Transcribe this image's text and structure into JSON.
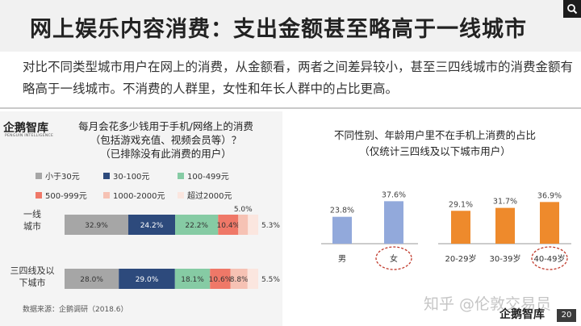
{
  "header": {
    "title": "网上娱乐内容消费：支出金额甚至略高于一线城市",
    "search_icon": "search-icon"
  },
  "description": "对比不同类型城市用户在网上的消费，从金额看，两者之间差异较小，甚至三四线城市的消费金额有略高于一线城市。不消费的人群里，女性和年长人群中的占比更高。",
  "logo": {
    "name": "企鹅智库",
    "subtitle": "PENGUIN INTELLIGENCE"
  },
  "left_chart": {
    "question_line1": "每月会花多少钱用于手机/网络上的消费",
    "question_line2": "（包括游戏充值、视频会员等）？",
    "question_line3": "（已排除没有此消费的用户）"
  },
  "right_chart": {
    "question_line1": "不同性别、年龄用户里不在手机上消费的占比",
    "question_line2": "（仅统计三四线及以下城市用户）"
  },
  "source": "数据来源：企鹅调研（2018.6）",
  "watermark": "知乎 @伦敦交易员",
  "page_number": "20",
  "colors": {
    "c1": "#a6a6a6",
    "c2": "#2d4a7c",
    "c3": "#86cba4",
    "c4": "#ef7868",
    "c5": "#f6c2b4",
    "c6": "#fbe6df",
    "gender_bar": "#92a9db",
    "age_bar": "#ee8a2c",
    "highlight_circle": "#c0392b"
  },
  "chart_data": [
    {
      "type": "bar",
      "orientation": "horizontal",
      "stacked": true,
      "percent": true,
      "categories": [
        "一线城市",
        "三四线及以下城市"
      ],
      "series": [
        {
          "name": "小于30元",
          "values": [
            32.9,
            28.0
          ]
        },
        {
          "name": "30-100元",
          "values": [
            24.2,
            29.0
          ]
        },
        {
          "name": "100-499元",
          "values": [
            22.2,
            18.1
          ]
        },
        {
          "name": "500-999元",
          "values": [
            10.4,
            10.6
          ]
        },
        {
          "name": "1000-2000元",
          "values": [
            5.0,
            8.8
          ]
        },
        {
          "name": "超过2000元",
          "values": [
            5.3,
            5.5
          ]
        }
      ],
      "title": "每月会花多少钱用于手机/网络上的消费（包括游戏充值、视频会员等）？（已排除没有此消费的用户）",
      "legend_position": "top",
      "grid": false
    },
    {
      "type": "bar",
      "categories": [
        "男",
        "女"
      ],
      "values": [
        23.8,
        37.6
      ],
      "title": "不同性别、年龄用户里不在手机上消费的占比（仅统计三四线及以下城市用户）",
      "highlighted": [
        "女"
      ]
    },
    {
      "type": "bar",
      "categories": [
        "20-29岁",
        "30-39岁",
        "40-49岁"
      ],
      "values": [
        29.1,
        31.7,
        36.9
      ],
      "highlighted": [
        "40-49岁"
      ]
    }
  ]
}
